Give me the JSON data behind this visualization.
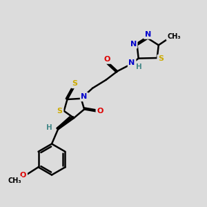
{
  "background_color": "#dcdcdc",
  "atom_colors": {
    "C": "#000000",
    "N": "#0000cc",
    "O": "#dd0000",
    "S": "#ccaa00",
    "H": "#448888",
    "default": "#000000"
  },
  "bond_color": "#000000",
  "bond_width": 1.8,
  "fig_size": [
    3.0,
    3.0
  ],
  "dpi": 100
}
